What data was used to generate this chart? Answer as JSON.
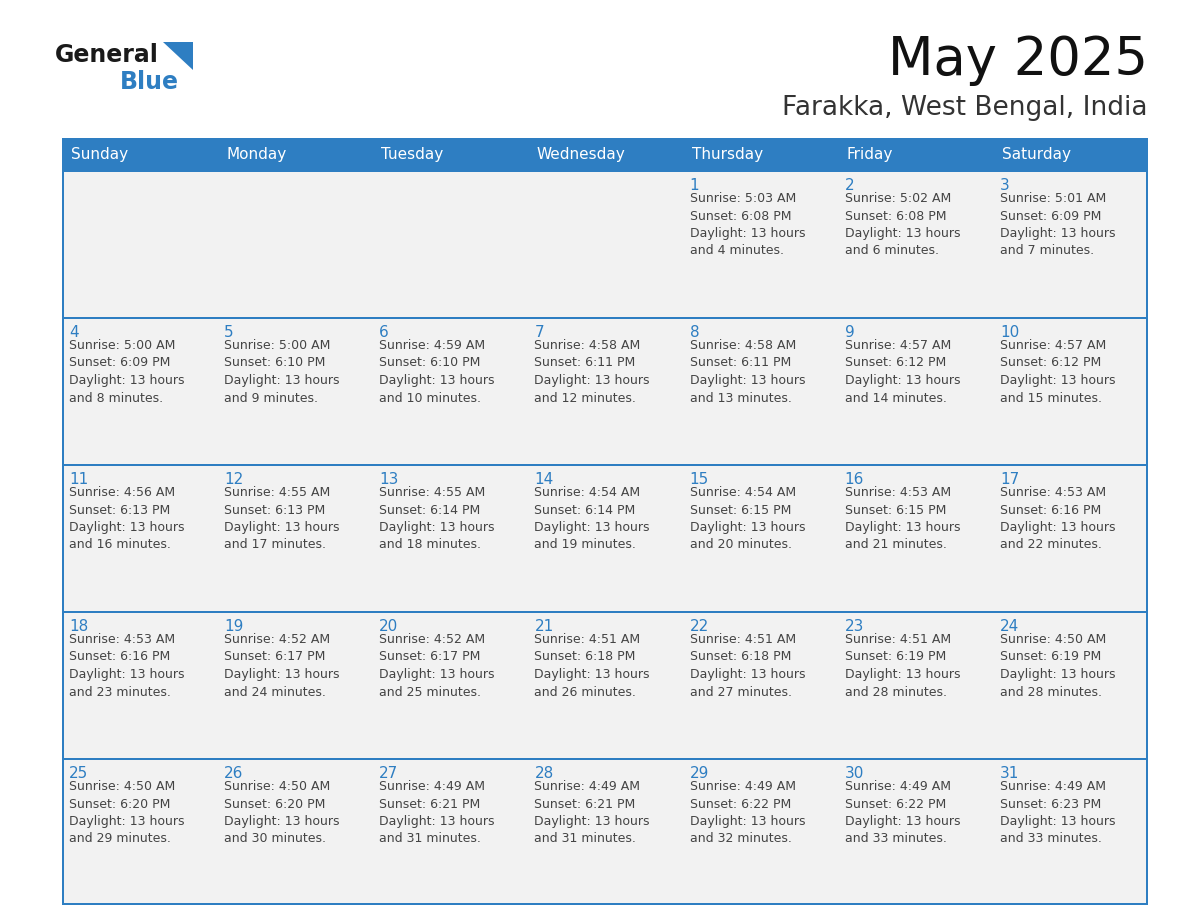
{
  "title": "May 2025",
  "subtitle": "Farakka, West Bengal, India",
  "days_of_week": [
    "Sunday",
    "Monday",
    "Tuesday",
    "Wednesday",
    "Thursday",
    "Friday",
    "Saturday"
  ],
  "header_bg": "#2E7EC2",
  "header_text": "#FFFFFF",
  "cell_bg": "#F2F2F2",
  "cell_bg_white": "#FFFFFF",
  "border_color": "#2E7EC2",
  "row_sep_color": "#2E7EC2",
  "day_number_color": "#2E7EC2",
  "text_color": "#444444",
  "logo_general_color": "#1a1a1a",
  "logo_blue_color": "#2E7EC2",
  "calendar_data": [
    [
      {
        "day": null,
        "info": null
      },
      {
        "day": null,
        "info": null
      },
      {
        "day": null,
        "info": null
      },
      {
        "day": null,
        "info": null
      },
      {
        "day": 1,
        "info": "Sunrise: 5:03 AM\nSunset: 6:08 PM\nDaylight: 13 hours\nand 4 minutes."
      },
      {
        "day": 2,
        "info": "Sunrise: 5:02 AM\nSunset: 6:08 PM\nDaylight: 13 hours\nand 6 minutes."
      },
      {
        "day": 3,
        "info": "Sunrise: 5:01 AM\nSunset: 6:09 PM\nDaylight: 13 hours\nand 7 minutes."
      }
    ],
    [
      {
        "day": 4,
        "info": "Sunrise: 5:00 AM\nSunset: 6:09 PM\nDaylight: 13 hours\nand 8 minutes."
      },
      {
        "day": 5,
        "info": "Sunrise: 5:00 AM\nSunset: 6:10 PM\nDaylight: 13 hours\nand 9 minutes."
      },
      {
        "day": 6,
        "info": "Sunrise: 4:59 AM\nSunset: 6:10 PM\nDaylight: 13 hours\nand 10 minutes."
      },
      {
        "day": 7,
        "info": "Sunrise: 4:58 AM\nSunset: 6:11 PM\nDaylight: 13 hours\nand 12 minutes."
      },
      {
        "day": 8,
        "info": "Sunrise: 4:58 AM\nSunset: 6:11 PM\nDaylight: 13 hours\nand 13 minutes."
      },
      {
        "day": 9,
        "info": "Sunrise: 4:57 AM\nSunset: 6:12 PM\nDaylight: 13 hours\nand 14 minutes."
      },
      {
        "day": 10,
        "info": "Sunrise: 4:57 AM\nSunset: 6:12 PM\nDaylight: 13 hours\nand 15 minutes."
      }
    ],
    [
      {
        "day": 11,
        "info": "Sunrise: 4:56 AM\nSunset: 6:13 PM\nDaylight: 13 hours\nand 16 minutes."
      },
      {
        "day": 12,
        "info": "Sunrise: 4:55 AM\nSunset: 6:13 PM\nDaylight: 13 hours\nand 17 minutes."
      },
      {
        "day": 13,
        "info": "Sunrise: 4:55 AM\nSunset: 6:14 PM\nDaylight: 13 hours\nand 18 minutes."
      },
      {
        "day": 14,
        "info": "Sunrise: 4:54 AM\nSunset: 6:14 PM\nDaylight: 13 hours\nand 19 minutes."
      },
      {
        "day": 15,
        "info": "Sunrise: 4:54 AM\nSunset: 6:15 PM\nDaylight: 13 hours\nand 20 minutes."
      },
      {
        "day": 16,
        "info": "Sunrise: 4:53 AM\nSunset: 6:15 PM\nDaylight: 13 hours\nand 21 minutes."
      },
      {
        "day": 17,
        "info": "Sunrise: 4:53 AM\nSunset: 6:16 PM\nDaylight: 13 hours\nand 22 minutes."
      }
    ],
    [
      {
        "day": 18,
        "info": "Sunrise: 4:53 AM\nSunset: 6:16 PM\nDaylight: 13 hours\nand 23 minutes."
      },
      {
        "day": 19,
        "info": "Sunrise: 4:52 AM\nSunset: 6:17 PM\nDaylight: 13 hours\nand 24 minutes."
      },
      {
        "day": 20,
        "info": "Sunrise: 4:52 AM\nSunset: 6:17 PM\nDaylight: 13 hours\nand 25 minutes."
      },
      {
        "day": 21,
        "info": "Sunrise: 4:51 AM\nSunset: 6:18 PM\nDaylight: 13 hours\nand 26 minutes."
      },
      {
        "day": 22,
        "info": "Sunrise: 4:51 AM\nSunset: 6:18 PM\nDaylight: 13 hours\nand 27 minutes."
      },
      {
        "day": 23,
        "info": "Sunrise: 4:51 AM\nSunset: 6:19 PM\nDaylight: 13 hours\nand 28 minutes."
      },
      {
        "day": 24,
        "info": "Sunrise: 4:50 AM\nSunset: 6:19 PM\nDaylight: 13 hours\nand 28 minutes."
      }
    ],
    [
      {
        "day": 25,
        "info": "Sunrise: 4:50 AM\nSunset: 6:20 PM\nDaylight: 13 hours\nand 29 minutes."
      },
      {
        "day": 26,
        "info": "Sunrise: 4:50 AM\nSunset: 6:20 PM\nDaylight: 13 hours\nand 30 minutes."
      },
      {
        "day": 27,
        "info": "Sunrise: 4:49 AM\nSunset: 6:21 PM\nDaylight: 13 hours\nand 31 minutes."
      },
      {
        "day": 28,
        "info": "Sunrise: 4:49 AM\nSunset: 6:21 PM\nDaylight: 13 hours\nand 31 minutes."
      },
      {
        "day": 29,
        "info": "Sunrise: 4:49 AM\nSunset: 6:22 PM\nDaylight: 13 hours\nand 32 minutes."
      },
      {
        "day": 30,
        "info": "Sunrise: 4:49 AM\nSunset: 6:22 PM\nDaylight: 13 hours\nand 33 minutes."
      },
      {
        "day": 31,
        "info": "Sunrise: 4:49 AM\nSunset: 6:23 PM\nDaylight: 13 hours\nand 33 minutes."
      }
    ]
  ]
}
